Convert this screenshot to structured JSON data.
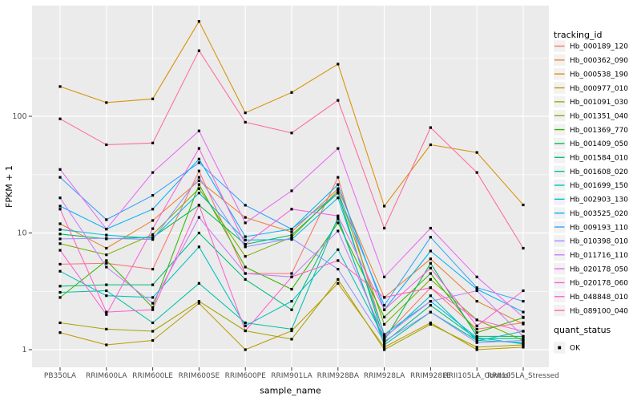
{
  "chart_data": {
    "type": "line",
    "title": "",
    "xlabel": "sample_name",
    "ylabel": "FPKM + 1",
    "y_scale": "log10",
    "y_ticks": [
      1,
      10,
      100
    ],
    "y_tick_labels": [
      "1",
      "10",
      "100"
    ],
    "y_minor_ticks": [
      3.16,
      31.6,
      316
    ],
    "ylim": [
      0.95,
      900
    ],
    "grid": true,
    "legend_position": "right",
    "legend_title": "tracking_id",
    "legend2_title": "quant_status",
    "quant_status_label": "OK",
    "categories": [
      "PB350LA",
      "RRIM600LA",
      "RRIM600LE",
      "RRIM600SE",
      "RRIM600PE",
      "RRIM901LA",
      "RRIM928BA",
      "RRIM928LA",
      "RRIM928LE",
      "RRII105LA_Control",
      "RRII105LA_Stressed"
    ],
    "series": [
      {
        "name": "Hb_000189_120",
        "color": "#F8766D",
        "values": [
          5.4,
          5.5,
          4.9,
          34,
          4.5,
          4.5,
          30,
          1.3,
          3.4,
          1.5,
          1.7
        ]
      },
      {
        "name": "Hb_000362_090",
        "color": "#EA8331",
        "values": [
          12,
          7.4,
          12.8,
          28,
          13.6,
          10.2,
          24,
          2.8,
          6.0,
          2.6,
          1.66
        ]
      },
      {
        "name": "Hb_000538_190",
        "color": "#D89000",
        "values": [
          180,
          131,
          141,
          650,
          107,
          160,
          280,
          17,
          57,
          49,
          17.4
        ]
      },
      {
        "name": "Hb_000977_010",
        "color": "#C09B00",
        "values": [
          1.4,
          1.1,
          1.2,
          2.5,
          1.0,
          1.45,
          3.7,
          1.05,
          1.7,
          1.0,
          1.05
        ]
      },
      {
        "name": "Hb_001091_030",
        "color": "#A3A500",
        "values": [
          1.7,
          1.5,
          1.44,
          2.6,
          1.45,
          1.23,
          4.0,
          1.0,
          1.65,
          1.05,
          1.1
        ]
      },
      {
        "name": "Hb_001351_040",
        "color": "#7CAE00",
        "values": [
          8.1,
          6.5,
          9.7,
          24,
          6.3,
          9.2,
          23,
          1.65,
          4.0,
          1.8,
          1.2
        ]
      },
      {
        "name": "Hb_001369_770",
        "color": "#39B600",
        "values": [
          2.8,
          5.8,
          2.3,
          26,
          5.1,
          3.3,
          12.2,
          1.9,
          4.5,
          1.4,
          1.88
        ]
      },
      {
        "name": "Hb_001409_050",
        "color": "#00BB4E",
        "values": [
          9.8,
          8.9,
          9.2,
          17.3,
          8.0,
          9.6,
          22,
          1.2,
          5.5,
          1.3,
          1.3
        ]
      },
      {
        "name": "Hb_001584_010",
        "color": "#00BF7D",
        "values": [
          3.5,
          3.6,
          3.6,
          10,
          4.0,
          2.2,
          13.2,
          1.15,
          2.4,
          1.24,
          1.25
        ]
      },
      {
        "name": "Hb_001608_020",
        "color": "#00C1A3",
        "values": [
          3.1,
          3.2,
          1.7,
          3.7,
          1.7,
          1.5,
          13.6,
          1.1,
          2.1,
          1.2,
          1.15
        ]
      },
      {
        "name": "Hb_001699_150",
        "color": "#00BFC4",
        "values": [
          4.7,
          2.9,
          2.8,
          7.6,
          1.6,
          2.6,
          7.2,
          1.25,
          2.9,
          1.19,
          1.44
        ]
      },
      {
        "name": "Hb_002903_130",
        "color": "#00BAE0",
        "values": [
          10.7,
          9.6,
          9.0,
          22,
          8.7,
          8.8,
          20,
          1.35,
          2.6,
          1.27,
          1.12
        ]
      },
      {
        "name": "Hb_003525_020",
        "color": "#00B0F6",
        "values": [
          17,
          10.8,
          16,
          43,
          9.3,
          10.8,
          26,
          2.2,
          7.0,
          3.3,
          2.1
        ]
      },
      {
        "name": "Hb_009193_110",
        "color": "#35A2FF",
        "values": [
          30,
          13,
          21,
          40,
          17.3,
          10.8,
          22,
          2.4,
          9.2,
          3.4,
          2.6
        ]
      },
      {
        "name": "Hb_010398_010",
        "color": "#9590FF",
        "values": [
          8.9,
          9.0,
          8.8,
          30,
          7.6,
          9.0,
          4.9,
          1.18,
          2.1,
          1.15,
          1.2
        ]
      },
      {
        "name": "Hb_011716_110",
        "color": "#C77CFF",
        "values": [
          20,
          5.1,
          2.5,
          13.6,
          4.5,
          4.2,
          10.4,
          1.28,
          2.6,
          3.2,
          1.3
        ]
      },
      {
        "name": "Hb_020178_050",
        "color": "#E76BF3",
        "values": [
          35,
          10.8,
          33,
          75,
          12.2,
          23,
          53,
          4.2,
          11,
          4.2,
          1.9
        ]
      },
      {
        "name": "Hb_020178_060",
        "color": "#FA62DB",
        "values": [
          7.1,
          2.0,
          10.9,
          53,
          8.0,
          16,
          14,
          2.2,
          5.0,
          1.6,
          3.2
        ]
      },
      {
        "name": "Hb_048848_010",
        "color": "#FF61CC",
        "values": [
          16,
          2.1,
          2.2,
          17.3,
          1.45,
          4.2,
          5.8,
          2.8,
          3.4,
          1.8,
          1.44
        ]
      },
      {
        "name": "Hb_089100_040",
        "color": "#FF6A98",
        "values": [
          95,
          57,
          59,
          365,
          89,
          72,
          137,
          11,
          80,
          33,
          7.4
        ]
      }
    ]
  },
  "theme": {
    "panel_bg": "#EBEBEB",
    "grid_color": "#FFFFFF",
    "tick_color": "#333333",
    "tick_label_color": "#4D4D4D",
    "title_color": "#000000",
    "legend_key_bg": "#F2F2F2",
    "marker_color": "#000000",
    "page_bg": "#FFFFFF"
  }
}
